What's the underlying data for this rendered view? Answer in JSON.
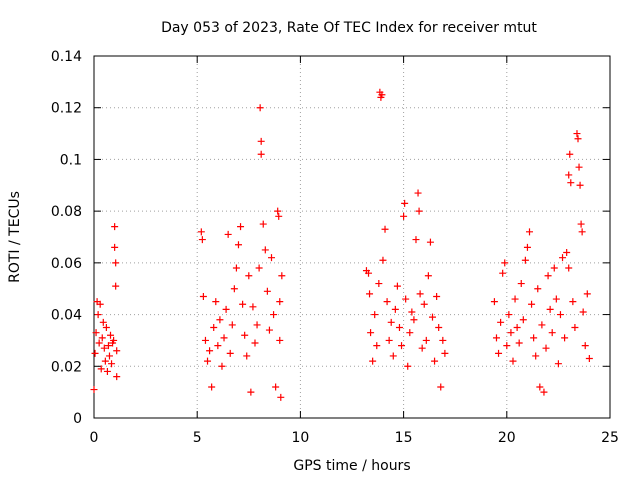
{
  "chart_data": {
    "type": "scatter",
    "title": "Day 053 of 2023, Rate Of TEC Index for receiver mtut",
    "xlabel": "GPS time / hours",
    "ylabel": "ROTI / TECUs",
    "xlim": [
      0,
      25
    ],
    "ylim": [
      0,
      0.14
    ],
    "x_ticks": [
      0,
      5,
      10,
      15,
      20,
      25
    ],
    "x_tick_labels": [
      "0",
      "5",
      "10",
      "15",
      "20",
      "25"
    ],
    "y_ticks": [
      0,
      0.02,
      0.04,
      0.06,
      0.08,
      0.1,
      0.12,
      0.14
    ],
    "y_tick_labels": [
      "0",
      "0.02",
      "0.04",
      "0.06",
      "0.08",
      "0.1",
      "0.12",
      "0.14"
    ],
    "grid": true,
    "marker": "plus",
    "color": "#ff0000",
    "series": [
      {
        "points": [
          [
            0.0,
            0.011
          ],
          [
            0.05,
            0.025
          ],
          [
            0.1,
            0.033
          ],
          [
            0.15,
            0.045
          ],
          [
            0.2,
            0.04
          ],
          [
            0.25,
            0.029
          ],
          [
            0.3,
            0.044
          ],
          [
            0.35,
            0.019
          ],
          [
            0.4,
            0.031
          ],
          [
            0.45,
            0.037
          ],
          [
            0.5,
            0.027
          ],
          [
            0.55,
            0.022
          ],
          [
            0.6,
            0.035
          ],
          [
            0.65,
            0.018
          ],
          [
            0.7,
            0.028
          ],
          [
            0.75,
            0.024
          ],
          [
            0.8,
            0.032
          ],
          [
            0.85,
            0.021
          ],
          [
            0.9,
            0.029
          ],
          [
            0.95,
            0.03
          ],
          [
            1.0,
            0.074
          ],
          [
            1.0,
            0.066
          ],
          [
            1.05,
            0.06
          ],
          [
            1.05,
            0.051
          ],
          [
            1.1,
            0.026
          ],
          [
            1.1,
            0.016
          ],
          [
            5.2,
            0.072
          ],
          [
            5.25,
            0.069
          ],
          [
            5.3,
            0.047
          ],
          [
            5.4,
            0.03
          ],
          [
            5.5,
            0.022
          ],
          [
            5.6,
            0.026
          ],
          [
            5.7,
            0.012
          ],
          [
            5.8,
            0.035
          ],
          [
            5.9,
            0.045
          ],
          [
            6.0,
            0.028
          ],
          [
            6.1,
            0.038
          ],
          [
            6.2,
            0.02
          ],
          [
            6.3,
            0.031
          ],
          [
            6.4,
            0.042
          ],
          [
            6.5,
            0.071
          ],
          [
            6.6,
            0.025
          ],
          [
            6.7,
            0.036
          ],
          [
            6.8,
            0.05
          ],
          [
            6.9,
            0.058
          ],
          [
            7.0,
            0.067
          ],
          [
            7.1,
            0.074
          ],
          [
            7.2,
            0.044
          ],
          [
            7.3,
            0.032
          ],
          [
            7.4,
            0.024
          ],
          [
            7.5,
            0.055
          ],
          [
            7.6,
            0.01
          ],
          [
            7.7,
            0.043
          ],
          [
            7.8,
            0.029
          ],
          [
            7.9,
            0.036
          ],
          [
            8.0,
            0.058
          ],
          [
            8.05,
            0.12
          ],
          [
            8.1,
            0.107
          ],
          [
            8.1,
            0.102
          ],
          [
            8.2,
            0.075
          ],
          [
            8.3,
            0.065
          ],
          [
            8.4,
            0.049
          ],
          [
            8.5,
            0.034
          ],
          [
            8.6,
            0.062
          ],
          [
            8.7,
            0.04
          ],
          [
            8.8,
            0.012
          ],
          [
            8.9,
            0.08
          ],
          [
            8.95,
            0.078
          ],
          [
            9.0,
            0.045
          ],
          [
            9.0,
            0.03
          ],
          [
            9.05,
            0.008
          ],
          [
            9.1,
            0.055
          ],
          [
            13.2,
            0.057
          ],
          [
            13.3,
            0.056
          ],
          [
            13.35,
            0.048
          ],
          [
            13.4,
            0.033
          ],
          [
            13.5,
            0.022
          ],
          [
            13.6,
            0.04
          ],
          [
            13.7,
            0.028
          ],
          [
            13.8,
            0.052
          ],
          [
            13.85,
            0.126
          ],
          [
            13.9,
            0.124
          ],
          [
            13.95,
            0.125
          ],
          [
            14.0,
            0.061
          ],
          [
            14.1,
            0.073
          ],
          [
            14.2,
            0.045
          ],
          [
            14.3,
            0.03
          ],
          [
            14.4,
            0.037
          ],
          [
            14.5,
            0.024
          ],
          [
            14.6,
            0.042
          ],
          [
            14.7,
            0.051
          ],
          [
            14.8,
            0.035
          ],
          [
            14.9,
            0.028
          ],
          [
            15.0,
            0.078
          ],
          [
            15.05,
            0.083
          ],
          [
            15.1,
            0.046
          ],
          [
            15.2,
            0.02
          ],
          [
            15.3,
            0.033
          ],
          [
            15.4,
            0.041
          ],
          [
            15.5,
            0.038
          ],
          [
            15.6,
            0.069
          ],
          [
            15.7,
            0.087
          ],
          [
            15.75,
            0.08
          ],
          [
            15.8,
            0.048
          ],
          [
            15.9,
            0.027
          ],
          [
            16.0,
            0.044
          ],
          [
            16.1,
            0.03
          ],
          [
            16.2,
            0.055
          ],
          [
            16.3,
            0.068
          ],
          [
            16.4,
            0.039
          ],
          [
            16.5,
            0.022
          ],
          [
            16.6,
            0.047
          ],
          [
            16.7,
            0.035
          ],
          [
            16.8,
            0.012
          ],
          [
            16.9,
            0.03
          ],
          [
            17.0,
            0.025
          ],
          [
            19.4,
            0.045
          ],
          [
            19.5,
            0.031
          ],
          [
            19.6,
            0.025
          ],
          [
            19.7,
            0.037
          ],
          [
            19.8,
            0.056
          ],
          [
            19.9,
            0.06
          ],
          [
            20.0,
            0.028
          ],
          [
            20.1,
            0.04
          ],
          [
            20.2,
            0.033
          ],
          [
            20.3,
            0.022
          ],
          [
            20.4,
            0.046
          ],
          [
            20.5,
            0.035
          ],
          [
            20.6,
            0.029
          ],
          [
            20.7,
            0.052
          ],
          [
            20.8,
            0.038
          ],
          [
            20.9,
            0.061
          ],
          [
            21.0,
            0.066
          ],
          [
            21.1,
            0.072
          ],
          [
            21.2,
            0.044
          ],
          [
            21.3,
            0.031
          ],
          [
            21.4,
            0.024
          ],
          [
            21.5,
            0.05
          ],
          [
            21.6,
            0.012
          ],
          [
            21.7,
            0.036
          ],
          [
            21.8,
            0.01
          ],
          [
            21.9,
            0.027
          ],
          [
            22.0,
            0.055
          ],
          [
            22.1,
            0.042
          ],
          [
            22.2,
            0.033
          ],
          [
            22.3,
            0.058
          ],
          [
            22.4,
            0.046
          ],
          [
            22.5,
            0.021
          ],
          [
            22.6,
            0.04
          ],
          [
            22.7,
            0.062
          ],
          [
            22.8,
            0.031
          ],
          [
            22.9,
            0.064
          ],
          [
            23.0,
            0.058
          ],
          [
            23.0,
            0.094
          ],
          [
            23.05,
            0.102
          ],
          [
            23.1,
            0.091
          ],
          [
            23.2,
            0.045
          ],
          [
            23.3,
            0.035
          ],
          [
            23.4,
            0.11
          ],
          [
            23.45,
            0.108
          ],
          [
            23.5,
            0.097
          ],
          [
            23.55,
            0.09
          ],
          [
            23.6,
            0.075
          ],
          [
            23.65,
            0.072
          ],
          [
            23.7,
            0.041
          ],
          [
            23.8,
            0.028
          ],
          [
            23.9,
            0.048
          ],
          [
            24.0,
            0.023
          ]
        ]
      }
    ]
  }
}
